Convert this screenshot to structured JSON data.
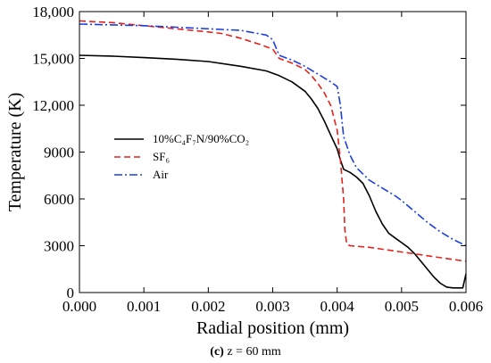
{
  "chart_data": {
    "type": "line",
    "title": "",
    "xlabel": "Radial position (mm)",
    "ylabel": "Temperature (K)",
    "xlim": [
      0,
      0.006
    ],
    "ylim": [
      0,
      18000
    ],
    "xticks": [
      0,
      0.001,
      0.002,
      0.003,
      0.004,
      0.005,
      0.006
    ],
    "xtick_labels": [
      "0.000",
      "0.001",
      "0.002",
      "0.003",
      "0.004",
      "0.005",
      "0.006"
    ],
    "yticks": [
      0,
      3000,
      6000,
      9000,
      12000,
      15000,
      18000
    ],
    "ytick_labels": [
      "0",
      "3000",
      "6000",
      "9000",
      "12,000",
      "15,000",
      "18,000"
    ],
    "grid": false,
    "legend_position": "center-left",
    "caption_bold": "(c)",
    "caption_text": " z = 60 mm",
    "series": [
      {
        "name": "10%C₄F₇N/90%CO₂",
        "color": "#000000",
        "dash": "solid",
        "x": [
          0,
          0.0005,
          0.001,
          0.0015,
          0.002,
          0.0025,
          0.0029,
          0.0031,
          0.0033,
          0.0035,
          0.0036,
          0.0037,
          0.0038,
          0.0039,
          0.004,
          0.00405,
          0.0041,
          0.0042,
          0.0043,
          0.0044,
          0.0045,
          0.0046,
          0.0047,
          0.0048,
          0.0049,
          0.005,
          0.0051,
          0.0052,
          0.0053,
          0.0054,
          0.0055,
          0.0056,
          0.0057,
          0.0058,
          0.00595,
          0.006
        ],
        "y": [
          15200,
          15150,
          15050,
          14950,
          14800,
          14500,
          14200,
          13900,
          13500,
          12900,
          12400,
          11800,
          11000,
          10100,
          9200,
          8500,
          7900,
          7700,
          7400,
          7000,
          6200,
          5200,
          4400,
          3800,
          3500,
          3200,
          2900,
          2500,
          2000,
          1500,
          1000,
          600,
          350,
          300,
          300,
          1200
        ]
      },
      {
        "name": "SF₆",
        "color": "#e8211c",
        "dash": "dashed",
        "x": [
          0,
          0.0005,
          0.001,
          0.0015,
          0.002,
          0.0022,
          0.0025,
          0.0028,
          0.003,
          0.0031,
          0.0033,
          0.0035,
          0.0036,
          0.0037,
          0.0038,
          0.0039,
          0.004,
          0.00405,
          0.0041,
          0.00412,
          0.00415,
          0.0042,
          0.0045,
          0.005,
          0.0055,
          0.006
        ],
        "y": [
          17400,
          17300,
          17100,
          16900,
          16700,
          16600,
          16300,
          15900,
          15600,
          15000,
          14700,
          14300,
          13900,
          13400,
          12800,
          12000,
          10400,
          8500,
          6000,
          4000,
          3100,
          3000,
          2900,
          2600,
          2300,
          2000
        ]
      },
      {
        "name": "Air",
        "color": "#1c3fe0",
        "dash": "dashdot",
        "x": [
          0,
          0.0005,
          0.001,
          0.0015,
          0.002,
          0.0025,
          0.0029,
          0.003,
          0.0031,
          0.0033,
          0.0035,
          0.0037,
          0.0039,
          0.004,
          0.00405,
          0.0041,
          0.0042,
          0.0043,
          0.0045,
          0.0047,
          0.0049,
          0.005,
          0.0052,
          0.0054,
          0.0056,
          0.0058,
          0.006
        ],
        "y": [
          17200,
          17150,
          17100,
          17000,
          16900,
          16800,
          16500,
          16200,
          15200,
          14900,
          14500,
          14000,
          13500,
          13200,
          12000,
          10000,
          8800,
          8000,
          7200,
          6700,
          6200,
          5900,
          5200,
          4500,
          3900,
          3400,
          3000
        ]
      }
    ]
  }
}
